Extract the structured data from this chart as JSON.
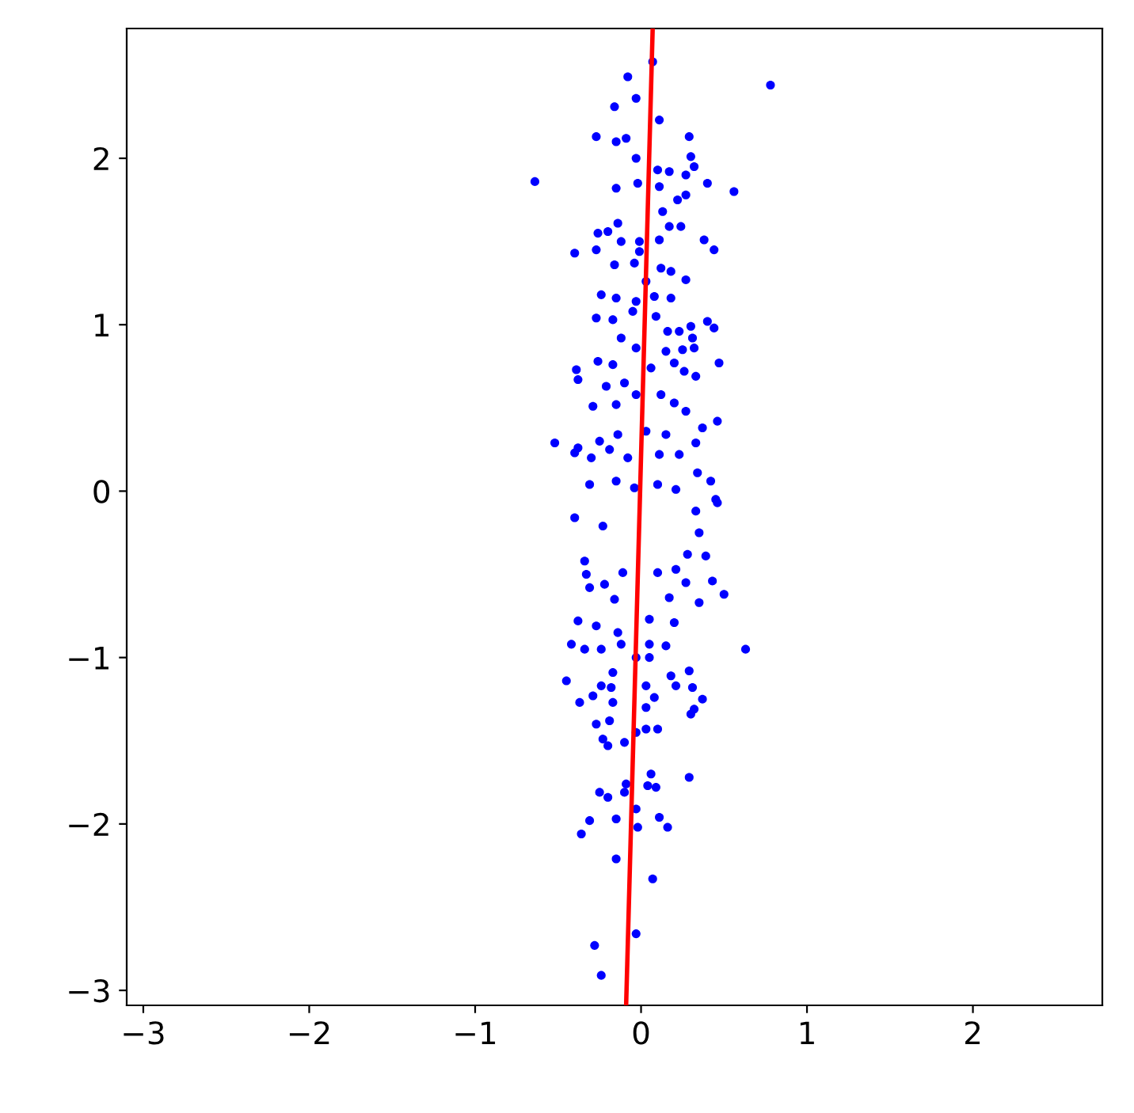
{
  "chart_data": {
    "type": "scatter",
    "xlim": [
      -3.1,
      2.78
    ],
    "ylim": [
      -3.09,
      2.78
    ],
    "xticks": [
      {
        "value": -3,
        "label": "−3"
      },
      {
        "value": -2,
        "label": "−2"
      },
      {
        "value": -1,
        "label": "−1"
      },
      0,
      1,
      2
    ],
    "yticks": [
      {
        "value": -3,
        "label": "−3"
      },
      {
        "value": -2,
        "label": "−2"
      },
      {
        "value": -1,
        "label": "−1"
      },
      0,
      1,
      2
    ],
    "grid": false,
    "legend": false,
    "series": [
      {
        "color": "#0000ff",
        "marker": "circle",
        "x": [
          0.07,
          -0.08,
          0.78,
          -0.03,
          -0.16,
          0.11,
          -0.27,
          0.29,
          -0.15,
          -0.09,
          -0.03,
          0.3,
          0.32,
          0.1,
          0.17,
          0.27,
          -0.64,
          -0.02,
          0.11,
          0.4,
          -0.15,
          0.56,
          0.27,
          0.22,
          0.13,
          -0.14,
          -0.26,
          -0.2,
          0.17,
          0.24,
          -0.12,
          -0.01,
          0.11,
          0.38,
          0.44,
          -0.4,
          -0.27,
          -0.01,
          -0.16,
          -0.04,
          0.12,
          0.18,
          0.27,
          0.03,
          -0.24,
          -0.15,
          0.08,
          0.18,
          -0.03,
          -0.27,
          -0.05,
          0.09,
          -0.17,
          0.4,
          0.44,
          0.3,
          0.23,
          0.16,
          -0.12,
          0.31,
          0.32,
          0.25,
          0.15,
          -0.03,
          0.47,
          -0.39,
          -0.38,
          -0.26,
          -0.17,
          0.06,
          0.2,
          0.26,
          0.33,
          -0.21,
          -0.1,
          -0.03,
          0.12,
          -0.29,
          -0.15,
          0.2,
          0.27,
          0.46,
          0.37,
          -0.52,
          -0.38,
          -0.4,
          -0.25,
          -0.14,
          0.03,
          0.15,
          0.33,
          -0.3,
          -0.19,
          -0.08,
          0.11,
          0.23,
          0.34,
          0.42,
          -0.31,
          -0.15,
          -0.04,
          0.1,
          0.21,
          0.45,
          -0.4,
          -0.23,
          0.46,
          0.33,
          0.28,
          0.39,
          0.35,
          -0.34,
          -0.33,
          -0.31,
          -0.22,
          -0.11,
          0.1,
          0.21,
          0.27,
          0.43,
          0.5,
          0.35,
          0.17,
          -0.16,
          -0.38,
          -0.27,
          -0.14,
          0.05,
          0.2,
          -0.42,
          -0.34,
          -0.24,
          -0.12,
          0.05,
          0.15,
          0.63,
          -0.03,
          0.05,
          -0.45,
          -0.17,
          -0.24,
          -0.18,
          -0.29,
          -0.37,
          -0.17,
          0.03,
          0.18,
          0.29,
          0.21,
          0.31,
          0.37,
          0.08,
          0.32,
          0.3,
          0.03,
          -0.27,
          -0.19,
          -0.23,
          -0.2,
          -0.1,
          0.03,
          0.1,
          -0.03,
          0.06,
          0.04,
          0.09,
          0.29,
          -0.09,
          -0.1,
          -0.25,
          -0.2,
          -0.03,
          -0.15,
          -0.31,
          -0.36,
          -0.02,
          0.11,
          0.16,
          -0.15,
          0.07,
          -0.03,
          -0.28,
          -0.24
        ],
        "values": [
          2.58,
          2.49,
          2.44,
          2.36,
          2.31,
          2.23,
          2.13,
          2.13,
          2.1,
          2.12,
          2.0,
          2.01,
          1.95,
          1.93,
          1.92,
          1.9,
          1.86,
          1.85,
          1.83,
          1.85,
          1.82,
          1.8,
          1.78,
          1.75,
          1.68,
          1.61,
          1.55,
          1.56,
          1.59,
          1.59,
          1.5,
          1.5,
          1.51,
          1.51,
          1.45,
          1.43,
          1.45,
          1.44,
          1.36,
          1.37,
          1.34,
          1.32,
          1.27,
          1.26,
          1.18,
          1.16,
          1.17,
          1.16,
          1.14,
          1.04,
          1.08,
          1.05,
          1.03,
          1.02,
          0.98,
          0.99,
          0.96,
          0.96,
          0.92,
          0.92,
          0.86,
          0.85,
          0.84,
          0.86,
          0.77,
          0.73,
          0.67,
          0.78,
          0.76,
          0.74,
          0.77,
          0.72,
          0.69,
          0.63,
          0.65,
          0.58,
          0.58,
          0.51,
          0.52,
          0.53,
          0.48,
          0.42,
          0.38,
          0.29,
          0.26,
          0.23,
          0.3,
          0.34,
          0.36,
          0.34,
          0.29,
          0.2,
          0.25,
          0.2,
          0.22,
          0.22,
          0.11,
          0.06,
          0.04,
          0.06,
          0.02,
          0.04,
          0.01,
          -0.05,
          -0.16,
          -0.21,
          -0.07,
          -0.12,
          -0.38,
          -0.39,
          -0.25,
          -0.42,
          -0.5,
          -0.58,
          -0.56,
          -0.49,
          -0.49,
          -0.47,
          -0.55,
          -0.54,
          -0.62,
          -0.67,
          -0.64,
          -0.65,
          -0.78,
          -0.81,
          -0.85,
          -0.77,
          -0.79,
          -0.92,
          -0.95,
          -0.95,
          -0.92,
          -0.92,
          -0.93,
          -0.95,
          -1.0,
          -1.0,
          -1.14,
          -1.09,
          -1.17,
          -1.18,
          -1.23,
          -1.27,
          -1.27,
          -1.17,
          -1.11,
          -1.08,
          -1.17,
          -1.18,
          -1.25,
          -1.24,
          -1.31,
          -1.34,
          -1.3,
          -1.4,
          -1.38,
          -1.49,
          -1.53,
          -1.51,
          -1.43,
          -1.43,
          -1.45,
          -1.7,
          -1.77,
          -1.78,
          -1.72,
          -1.76,
          -1.81,
          -1.81,
          -1.84,
          -1.91,
          -1.97,
          -1.98,
          -2.06,
          -2.02,
          -1.96,
          -2.02,
          -2.21,
          -2.33,
          -2.66,
          -2.73,
          -2.91
        ]
      },
      {
        "type": "line",
        "color": "#ff0000",
        "line_style": "solid",
        "x": [
          -0.09,
          0.07
        ],
        "values": [
          -3.09,
          2.78
        ]
      }
    ]
  }
}
